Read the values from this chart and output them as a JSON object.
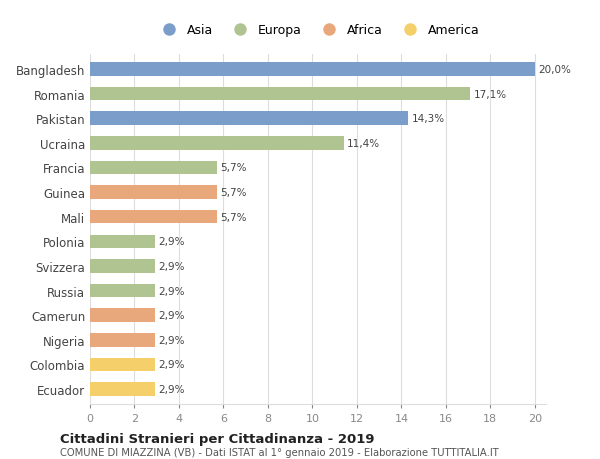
{
  "categories": [
    "Bangladesh",
    "Romania",
    "Pakistan",
    "Ucraina",
    "Francia",
    "Guinea",
    "Mali",
    "Polonia",
    "Svizzera",
    "Russia",
    "Camerun",
    "Nigeria",
    "Colombia",
    "Ecuador"
  ],
  "values": [
    20.0,
    17.1,
    14.3,
    11.4,
    5.7,
    5.7,
    5.7,
    2.9,
    2.9,
    2.9,
    2.9,
    2.9,
    2.9,
    2.9
  ],
  "labels": [
    "20,0%",
    "17,1%",
    "14,3%",
    "11,4%",
    "5,7%",
    "5,7%",
    "5,7%",
    "2,9%",
    "2,9%",
    "2,9%",
    "2,9%",
    "2,9%",
    "2,9%",
    "2,9%"
  ],
  "colors": [
    "#7b9dc9",
    "#b0c492",
    "#7b9dc9",
    "#b0c492",
    "#b0c492",
    "#e8a87c",
    "#e8a87c",
    "#b0c492",
    "#b0c492",
    "#b0c492",
    "#e8a87c",
    "#e8a87c",
    "#f5cf6a",
    "#f5cf6a"
  ],
  "legend_labels": [
    "Asia",
    "Europa",
    "Africa",
    "America"
  ],
  "legend_colors": [
    "#7b9dc9",
    "#b0c492",
    "#e8a87c",
    "#f5cf6a"
  ],
  "title": "Cittadini Stranieri per Cittadinanza - 2019",
  "subtitle": "COMUNE DI MIAZZINA (VB) - Dati ISTAT al 1° gennaio 2019 - Elaborazione TUTTITALIA.IT",
  "xlim_max": 20,
  "xticks": [
    0,
    2,
    4,
    6,
    8,
    10,
    12,
    14,
    16,
    18,
    20
  ],
  "background_color": "#ffffff",
  "grid_color": "#dddddd"
}
